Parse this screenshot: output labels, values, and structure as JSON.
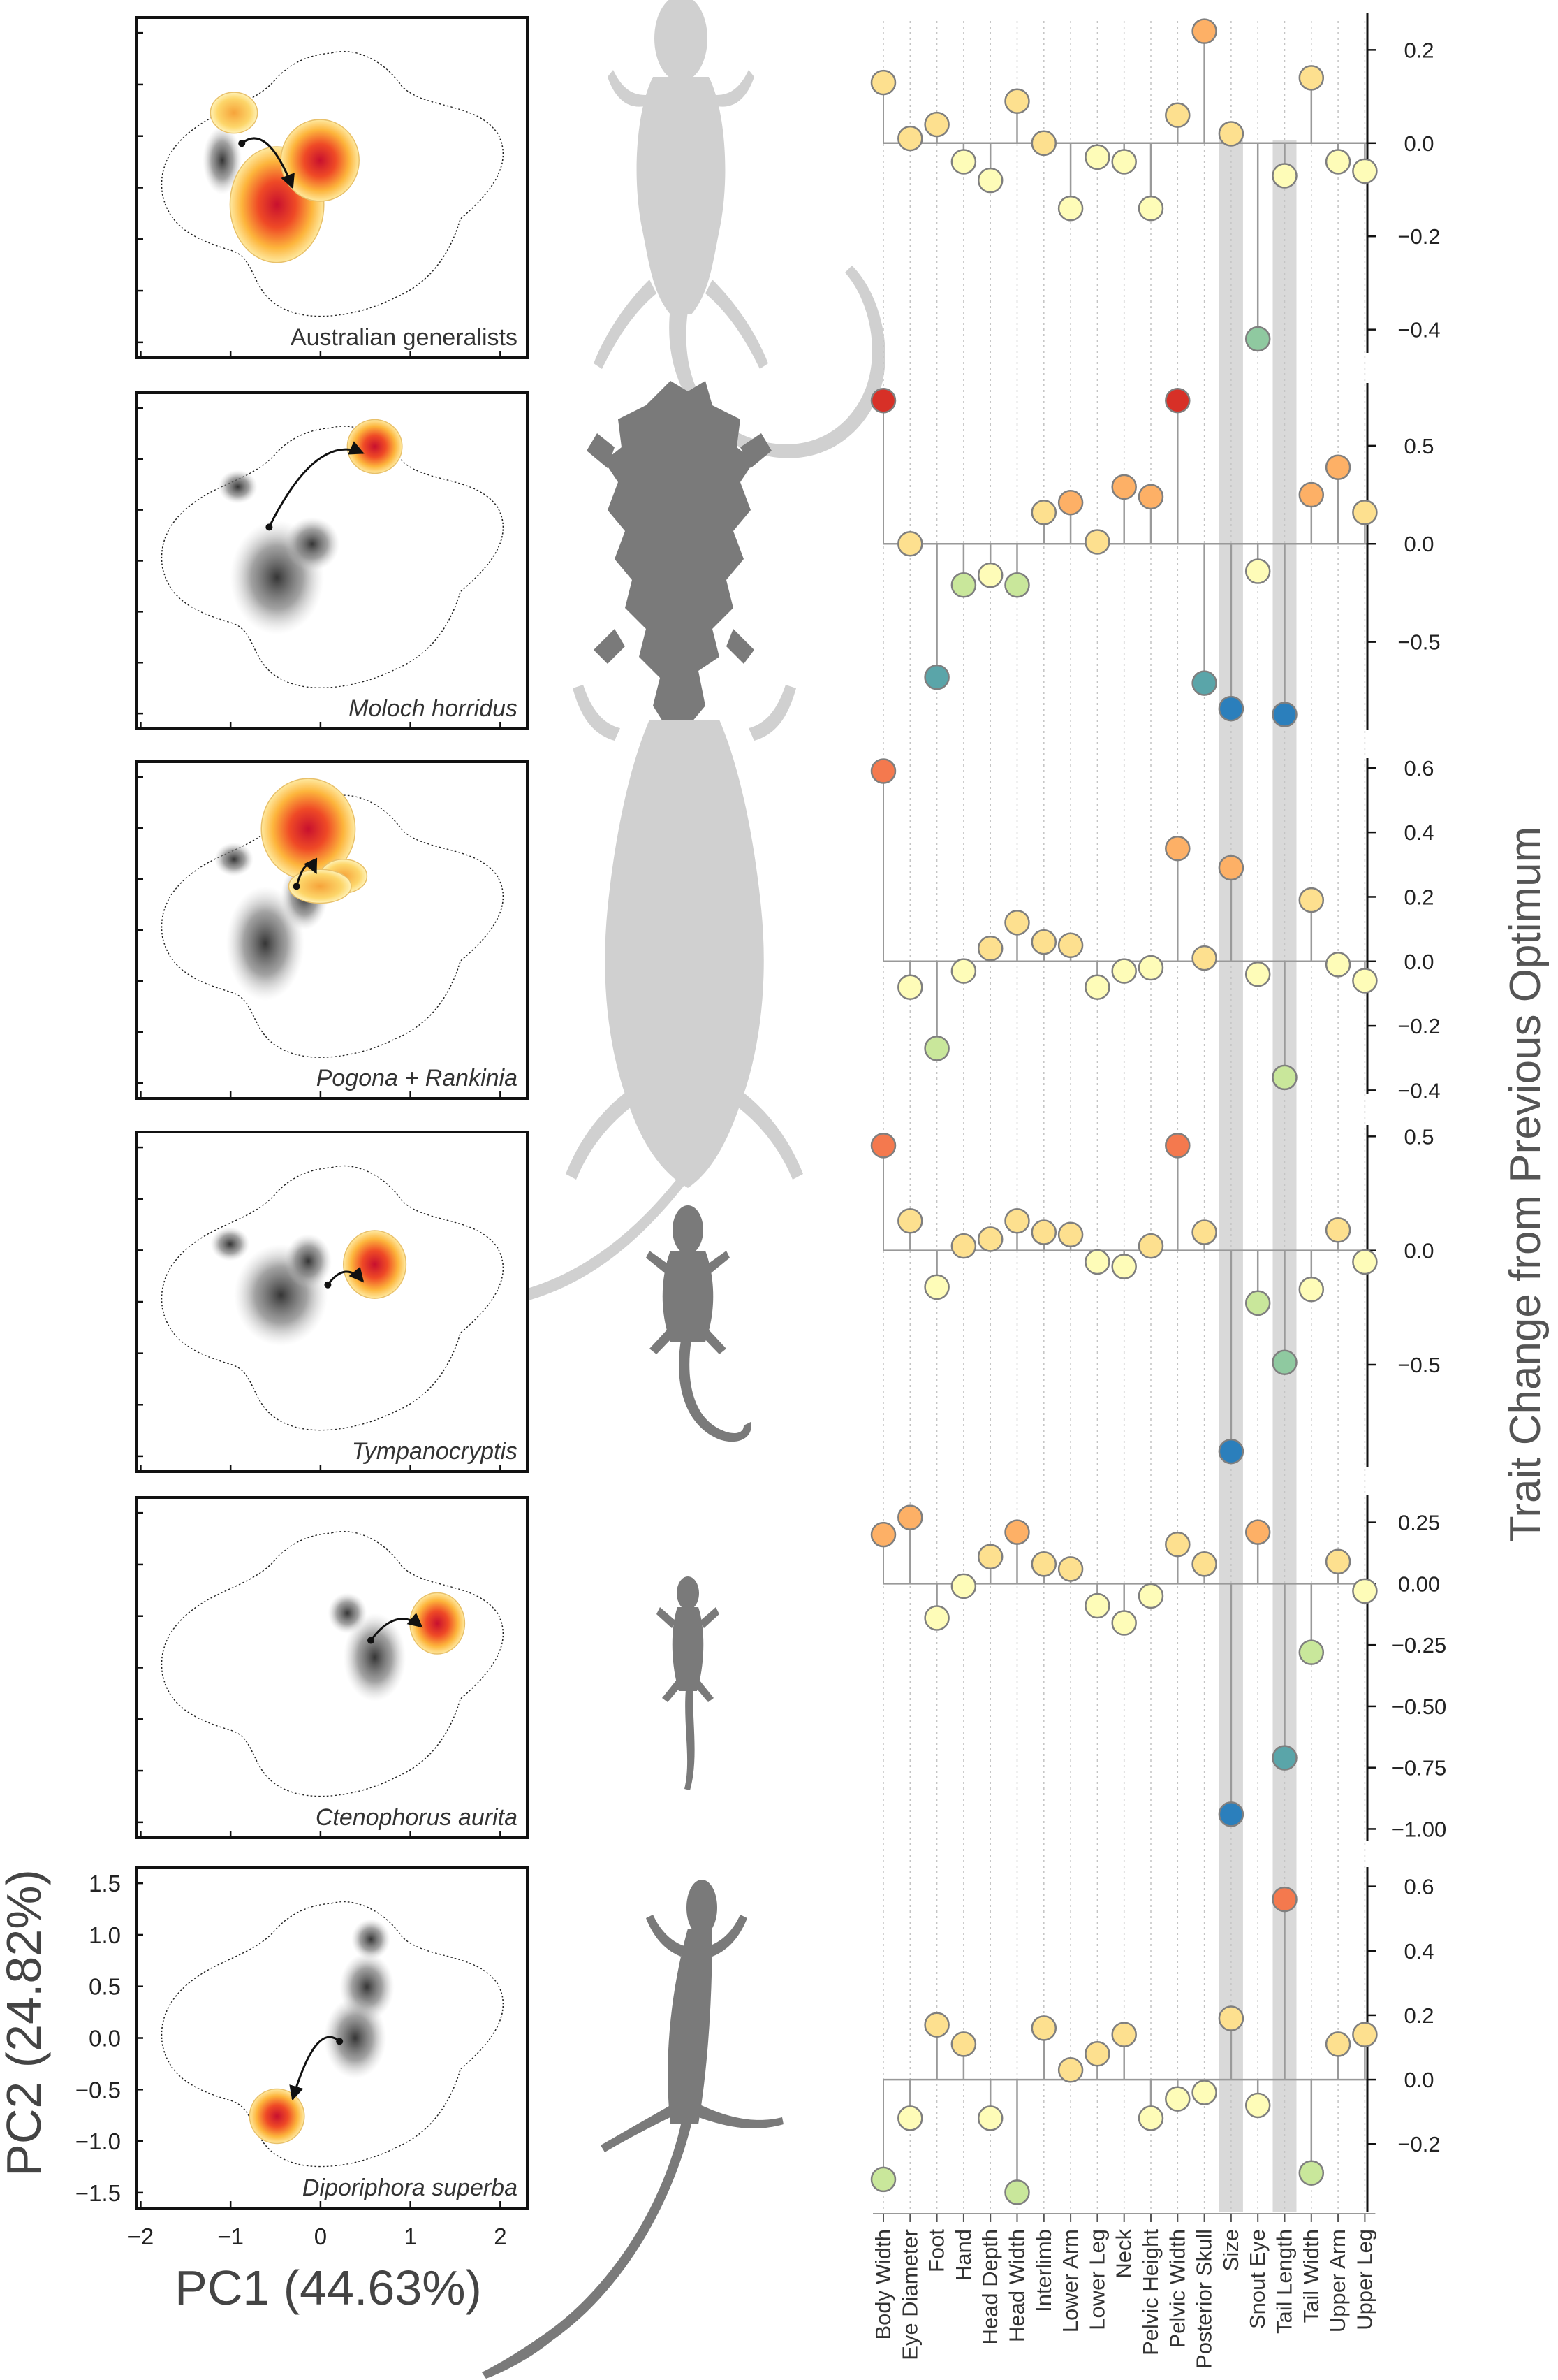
{
  "figure": {
    "y_axis_title": "Trait Change from Previous Optimum",
    "pc_axis_x_title": "PC1 (44.63%)",
    "pc_axis_y_title": "PC2 (24.82%)"
  },
  "colors": {
    "scale": [
      "#2b7fbc",
      "#5aa5a9",
      "#8fc9a0",
      "#c9e79b",
      "#fefcb8",
      "#fde08f",
      "#fdb066",
      "#f4794e",
      "#d73027"
    ],
    "stem": "#9a9a9a",
    "highlight_band": "#d9d9d9",
    "silhouette_light": "#d0d0d0",
    "silhouette_dark": "#7a7a7a"
  },
  "chart_data": {
    "type": "lollipop",
    "traits": [
      "Body Width",
      "Eye Diameter",
      "Foot",
      "Hand",
      "Head Depth",
      "Head Width",
      "Interlimb",
      "Lower Arm",
      "Lower Leg",
      "Neck",
      "Pelvic Height",
      "Pelvic Width",
      "Posterior Skull",
      "Size",
      "Snout Eye",
      "Tail Length",
      "Tail Width",
      "Upper Arm",
      "Upper Leg"
    ],
    "highlighted_traits": [
      "Size",
      "Tail Length"
    ],
    "panels": [
      {
        "label": "Australian generalists",
        "italic": false,
        "ylim": [
          -0.45,
          0.28
        ],
        "ticks": [
          -0.4,
          -0.2,
          0.0,
          0.2
        ],
        "tick_labels": [
          "−0.4",
          "−0.2",
          "0.0",
          "0.2"
        ],
        "values": [
          0.13,
          0.01,
          0.04,
          -0.04,
          -0.08,
          0.09,
          0.0,
          -0.14,
          -0.03,
          -0.04,
          -0.14,
          0.06,
          0.24,
          0.02,
          -0.42,
          -0.07,
          0.14,
          -0.04,
          -0.06
        ]
      },
      {
        "label": "Moloch horridus",
        "italic": true,
        "ylim": [
          -0.95,
          0.82
        ],
        "ticks": [
          -0.5,
          0.0,
          0.5
        ],
        "tick_labels": [
          "−0.5",
          "0.0",
          "0.5"
        ],
        "values": [
          0.73,
          0.0,
          -0.68,
          -0.21,
          -0.16,
          -0.21,
          0.16,
          0.21,
          0.01,
          0.29,
          0.24,
          0.73,
          -0.71,
          -0.84,
          -0.14,
          -0.87,
          0.25,
          0.39,
          0.16
        ]
      },
      {
        "label": "Pogona + Rankinia",
        "italic": true,
        "ylim": [
          -0.41,
          0.63
        ],
        "ticks": [
          -0.4,
          -0.2,
          0.0,
          0.2,
          0.4,
          0.6
        ],
        "tick_labels": [
          "−0.4",
          "−0.2",
          "0.0",
          "0.2",
          "0.4",
          "0.6"
        ],
        "values": [
          0.59,
          -0.08,
          -0.27,
          -0.03,
          0.04,
          0.12,
          0.06,
          0.05,
          -0.08,
          -0.03,
          -0.02,
          0.35,
          0.01,
          0.29,
          -0.04,
          -0.36,
          0.19,
          -0.01,
          -0.06
        ]
      },
      {
        "label": "Tympanocryptis",
        "italic": true,
        "ylim": [
          -0.95,
          0.55
        ],
        "ticks": [
          -0.5,
          0.0,
          0.5
        ],
        "tick_labels": [
          "−0.5",
          "0.0",
          "0.5"
        ],
        "values": [
          0.46,
          0.13,
          -0.16,
          0.02,
          0.05,
          0.13,
          0.08,
          0.07,
          -0.05,
          -0.07,
          0.02,
          0.46,
          0.08,
          -0.88,
          -0.23,
          -0.49,
          -0.17,
          0.09,
          -0.05
        ]
      },
      {
        "label": "Ctenophorus aurita",
        "italic": true,
        "ylim": [
          -1.05,
          0.36
        ],
        "ticks": [
          -1.0,
          -0.75,
          -0.5,
          -0.25,
          0.0,
          0.25
        ],
        "tick_labels": [
          "−1.00",
          "−0.75",
          "−0.50",
          "−0.25",
          "0.00",
          "0.25"
        ],
        "values": [
          0.2,
          0.27,
          -0.14,
          -0.01,
          0.11,
          0.21,
          0.08,
          0.06,
          -0.09,
          -0.16,
          -0.05,
          0.16,
          0.08,
          -0.94,
          0.21,
          -0.71,
          -0.28,
          0.09,
          -0.03
        ]
      },
      {
        "label": "Diporiphora superba",
        "italic": true,
        "ylim": [
          -0.41,
          0.66
        ],
        "ticks": [
          -0.2,
          0.0,
          0.2,
          0.4,
          0.6
        ],
        "tick_labels": [
          "−0.2",
          "0.0",
          "0.2",
          "0.4",
          "0.6"
        ],
        "values": [
          -0.31,
          -0.12,
          0.17,
          0.11,
          -0.12,
          -0.35,
          0.16,
          0.03,
          0.08,
          0.14,
          -0.12,
          -0.06,
          -0.04,
          0.19,
          -0.08,
          0.56,
          -0.29,
          0.11,
          0.14
        ]
      }
    ],
    "pc_axes": {
      "xlabel": "PC1 (44.63%)",
      "ylabel": "PC2 (24.82%)",
      "xlim": [
        -2.05,
        2.3
      ],
      "ylim": [
        -1.65,
        1.65
      ],
      "xticks": [
        -2,
        -1,
        0,
        1,
        2
      ],
      "xtick_labels": [
        "−2",
        "−1",
        "0",
        "1",
        "2"
      ],
      "yticks": [
        -1.5,
        -1.0,
        -0.5,
        0.0,
        0.5,
        1.0,
        1.5
      ],
      "ytick_labels": [
        "−1.5",
        "−1.0",
        "−0.5",
        "0.0",
        "0.5",
        "1.0",
        "1.5"
      ]
    }
  }
}
